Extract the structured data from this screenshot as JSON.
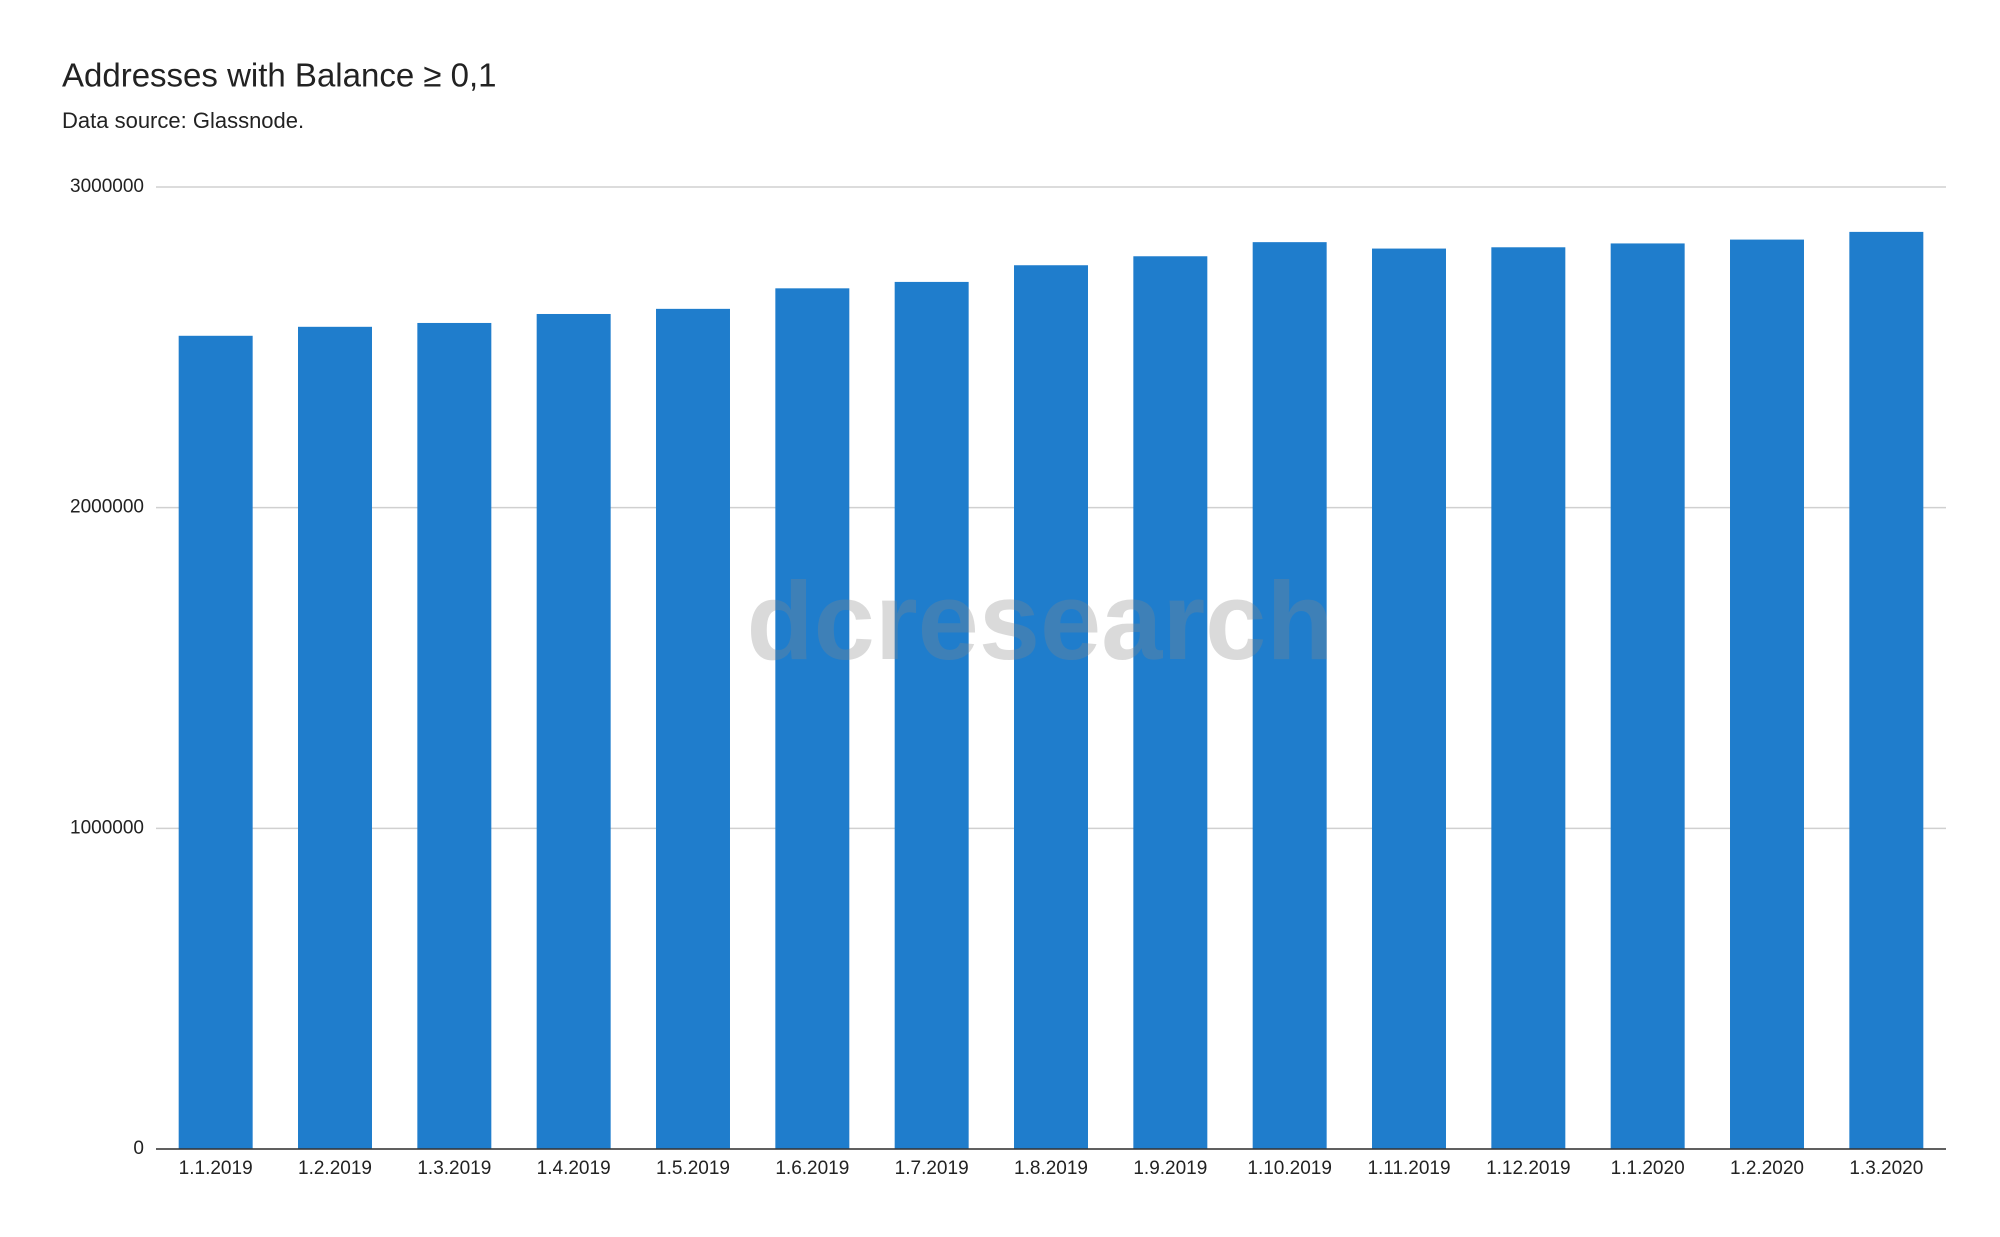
{
  "chart_data": {
    "type": "bar",
    "title": "Addresses with Balance ≥ 0,1",
    "subtitle": "Data source: Glassnode.",
    "watermark": "dcresearch",
    "categories": [
      "1.1.2019",
      "1.2.2019",
      "1.3.2019",
      "1.4.2019",
      "1.5.2019",
      "1.6.2019",
      "1.7.2019",
      "1.8.2019",
      "1.9.2019",
      "1.10.2019",
      "1.11.2019",
      "1.12.2019",
      "1.1.2020",
      "1.2.2020",
      "1.3.2020"
    ],
    "values": [
      2536000,
      2564000,
      2576000,
      2604000,
      2620000,
      2684000,
      2704000,
      2756000,
      2784000,
      2828000,
      2808000,
      2812000,
      2824000,
      2836000,
      2860000
    ],
    "color": "#1f7dcc",
    "ylim": [
      0,
      3000000
    ],
    "yticks": [
      0,
      1000000,
      2000000,
      3000000
    ],
    "grid": true
  }
}
